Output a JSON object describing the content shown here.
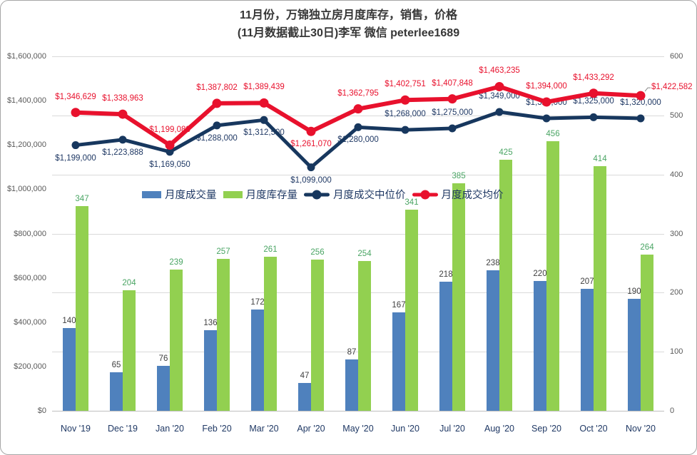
{
  "title": {
    "line1": "11月份，万锦独立房月度库存，销售，价格",
    "line2": "(11月数据截止30日)李军 微信 peterlee1689"
  },
  "chart_data": {
    "type": "combo",
    "categories": [
      "Nov '19",
      "Dec '19",
      "Jan '20",
      "Feb '20",
      "Mar '20",
      "Apr '20",
      "May '20",
      "Jun '20",
      "Jul '20",
      "Aug '20",
      "Sep '20",
      "Oct '20",
      "Nov '20"
    ],
    "series": [
      {
        "name": "月度成交量",
        "type": "bar",
        "axis": "right",
        "color": "#4f81bd",
        "label_color": "#404040",
        "values": [
          140,
          65,
          76,
          136,
          172,
          47,
          87,
          167,
          218,
          238,
          220,
          207,
          190
        ]
      },
      {
        "name": "月度库存量",
        "type": "bar",
        "axis": "right",
        "color": "#92d050",
        "label_color": "#4aa564",
        "values": [
          347,
          204,
          239,
          257,
          261,
          256,
          254,
          341,
          385,
          425,
          456,
          414,
          264
        ]
      },
      {
        "name": "月度成交中位价",
        "type": "line",
        "axis": "left",
        "color": "#17375e",
        "label_color": "#1f3864",
        "values": [
          1199000,
          1223888,
          1169050,
          1288000,
          1312500,
          1099000,
          1280000,
          1268000,
          1275000,
          1349000,
          1320000,
          1325000,
          1320000
        ],
        "label_sides": [
          "below",
          "below",
          "below",
          "below",
          "below",
          "below",
          "below",
          "above",
          "above",
          "above",
          "above",
          "above",
          "above"
        ]
      },
      {
        "name": "月度成交均价",
        "type": "line",
        "axis": "left",
        "color": "#e8112d",
        "label_color": "#e8112d",
        "values": [
          1346629,
          1338963,
          1199088,
          1387802,
          1389439,
          1261070,
          1362795,
          1402751,
          1407848,
          1463235,
          1394000,
          1433292,
          1422582
        ],
        "label_sides": [
          "above",
          "above",
          "above",
          "above",
          "above",
          "below",
          "above",
          "above",
          "above",
          "above",
          "above",
          "above",
          "right"
        ]
      }
    ],
    "left_axis": {
      "min": 0,
      "max": 1600000,
      "step": 200000,
      "labels": [
        "$0",
        "$200,000",
        "$400,000",
        "$600,000",
        "$800,000",
        "$1,000,000",
        "$1,200,000",
        "$1,400,000",
        "$1,600,000"
      ]
    },
    "right_axis": {
      "min": 0,
      "max": 600,
      "step": 100,
      "labels": [
        "0",
        "100",
        "200",
        "300",
        "400",
        "500",
        "600"
      ]
    },
    "value_label_format": "$#,##0",
    "legend_position": "inside-upper-middle",
    "grid": "horizontal"
  }
}
